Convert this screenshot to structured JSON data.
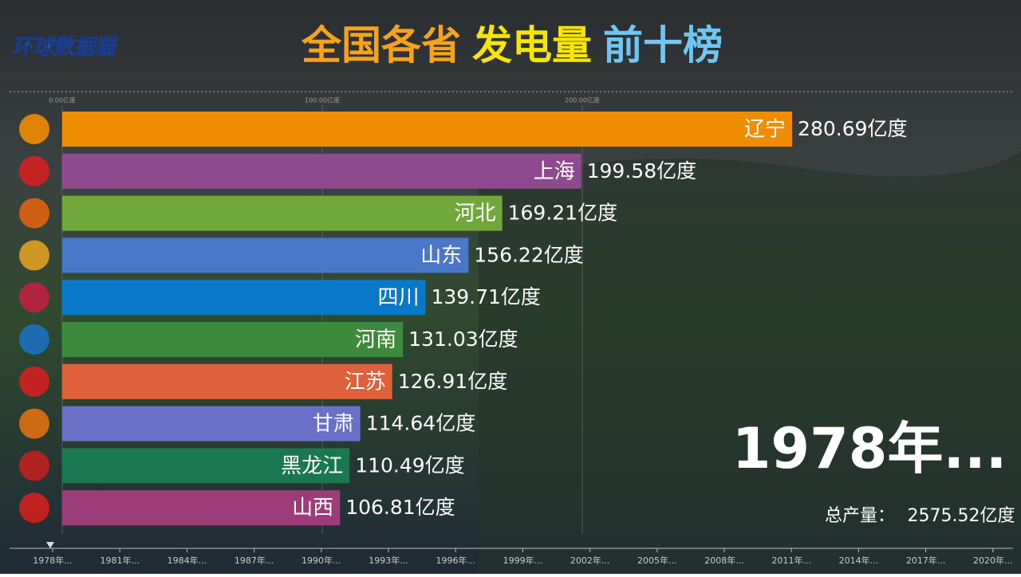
{
  "logo": "环球数据猫",
  "title_parts": [
    {
      "text": "全国各省",
      "color": "#f7a21b"
    },
    {
      "text": "发电量",
      "color": "#f7e600"
    },
    {
      "text": "前十榜",
      "color": "#6fc6f2"
    }
  ],
  "chart_data": {
    "type": "bar",
    "orientation": "horizontal",
    "categories": [
      "辽宁",
      "上海",
      "河北",
      "山东",
      "四川",
      "河南",
      "江苏",
      "甘肃",
      "黑龙江",
      "山西"
    ],
    "values": [
      280.69,
      199.58,
      169.21,
      156.22,
      139.71,
      131.03,
      126.91,
      114.64,
      110.49,
      106.81
    ],
    "value_labels": [
      "280.69亿度",
      "199.58亿度",
      "169.21亿度",
      "156.22亿度",
      "139.71亿度",
      "131.03亿度",
      "126.91亿度",
      "114.64亿度",
      "110.49亿度",
      "106.81亿度"
    ],
    "colors": [
      "#f08c00",
      "#8d4a8c",
      "#70a83c",
      "#4a78c8",
      "#0a78c8",
      "#3e8a3c",
      "#e0603c",
      "#6870c8",
      "#1a7850",
      "#9c3c78"
    ],
    "xlim": [
      0,
      300
    ],
    "xticks": [
      {
        "value": 0,
        "label": "0.00亿度"
      },
      {
        "value": 100,
        "label": "100.00亿度"
      },
      {
        "value": 200,
        "label": "200.00亿度"
      }
    ]
  },
  "current_year": "1978年...",
  "total": {
    "label": "总产量：",
    "value": "2575.52亿度"
  },
  "timeline": [
    "1978年...",
    "1981年...",
    "1984年...",
    "1987年...",
    "1990年...",
    "1993年...",
    "1996年...",
    "1999年...",
    "2002年...",
    "2005年...",
    "2008年...",
    "2011年...",
    "2014年...",
    "2017年...",
    "2020年..."
  ]
}
